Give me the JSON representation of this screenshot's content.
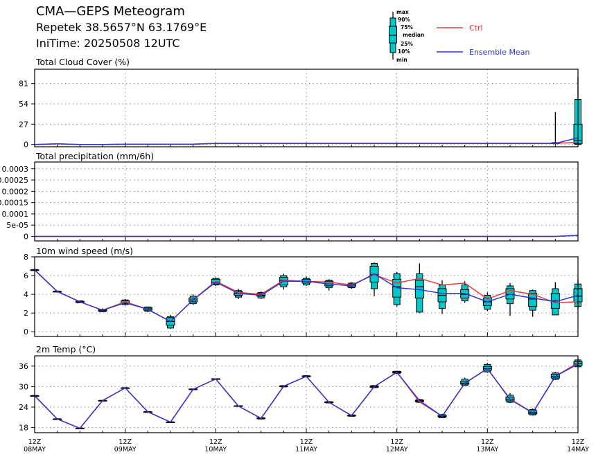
{
  "header": {
    "title": "CMA—GEPS Meteogram",
    "location": "Repetek 38.5657°N 63.1769°E",
    "init_time": "IniTime: 20250508 12UTC"
  },
  "legend": {
    "box_labels": [
      "max",
      "90%",
      "75%",
      "median",
      "25%",
      "10%",
      "min"
    ],
    "ctrl_label": "Ctrl",
    "mean_label": "Ensemble Mean",
    "ctrl_color": "#e8383d",
    "mean_color": "#2b35d8",
    "box_color": "#00c8c8"
  },
  "x_axis": {
    "ticks": [
      {
        "hour": "12Z",
        "date": "08MAY"
      },
      {
        "hour": "12Z",
        "date": "09MAY"
      },
      {
        "hour": "12Z",
        "date": "10MAY"
      },
      {
        "hour": "12Z",
        "date": "11MAY"
      },
      {
        "hour": "12Z",
        "date": "12MAY"
      },
      {
        "hour": "12Z",
        "date": "13MAY"
      },
      {
        "hour": "12Z",
        "date": "14MAY"
      }
    ],
    "step_hours": 6
  },
  "chart_data": [
    {
      "type": "line",
      "title": "Total Cloud Cover (%)",
      "ylim": [
        -3,
        100
      ],
      "yticks": [
        0,
        27,
        54,
        81
      ],
      "ytick_labels": [
        "0",
        "27",
        "54",
        "81"
      ],
      "x_hours": [
        0,
        6,
        12,
        18,
        24,
        30,
        36,
        42,
        48,
        54,
        60,
        66,
        72,
        78,
        84,
        90,
        96,
        102,
        108,
        114,
        120,
        126,
        132,
        138,
        144
      ],
      "ctrl": [
        0,
        1,
        0,
        0,
        0.5,
        0.5,
        0.5,
        0.5,
        1.5,
        1.5,
        1.5,
        1.5,
        1.5,
        1.5,
        1.5,
        1.5,
        1.5,
        1.5,
        1.5,
        1.5,
        1.5,
        1.5,
        1.5,
        1.5,
        3
      ],
      "mean": [
        0,
        1,
        0,
        0,
        0.5,
        0.5,
        0.5,
        0.5,
        1.5,
        1.5,
        1.5,
        1.5,
        1.5,
        1.5,
        1.5,
        1.5,
        1.5,
        1.5,
        1.5,
        1.5,
        1.5,
        1.5,
        1.5,
        1.5,
        9
      ],
      "boxes": [
        {
          "x": 138,
          "min": 0,
          "p10": 1,
          "p25": 1.5,
          "median": 1.5,
          "p75": 2,
          "p90": 2.5,
          "max": 43
        },
        {
          "x": 144,
          "min": 0,
          "p10": 0,
          "p25": 1,
          "median": 5,
          "p75": 27,
          "p90": 60,
          "max": 90
        }
      ]
    },
    {
      "type": "line",
      "title": "Total precipitation (mm/6h)",
      "ylim": [
        -2e-05,
        0.00033
      ],
      "yticks": [
        0,
        5e-05,
        0.0001,
        0.00015,
        0.0002,
        0.00025,
        0.0003
      ],
      "ytick_labels": [
        "0",
        "5e-05",
        "0.0001",
        "0.00015",
        "0.0002",
        "0.00025",
        "0.0003"
      ],
      "x_hours": [
        0,
        6,
        12,
        18,
        24,
        30,
        36,
        42,
        48,
        54,
        60,
        66,
        72,
        78,
        84,
        90,
        96,
        102,
        108,
        114,
        120,
        126,
        132,
        138,
        144
      ],
      "ctrl": [
        0,
        0,
        0,
        0,
        0,
        0,
        0,
        0,
        0,
        0,
        0,
        0,
        0,
        0,
        0,
        0,
        0,
        0,
        0,
        0,
        0,
        0,
        0,
        0,
        5e-06
      ],
      "mean": [
        0,
        0,
        0,
        0,
        0,
        0,
        0,
        0,
        0,
        0,
        0,
        0,
        0,
        0,
        0,
        0,
        0,
        0,
        0,
        0,
        0,
        0,
        0,
        0,
        5e-06
      ],
      "boxes": []
    },
    {
      "type": "line",
      "title": "10m wind speed (m/s)",
      "ylim": [
        -0.5,
        8
      ],
      "yticks": [
        0,
        2,
        4,
        6,
        8
      ],
      "ytick_labels": [
        "0",
        "2",
        "4",
        "6",
        "8"
      ],
      "x_hours": [
        0,
        6,
        12,
        18,
        24,
        30,
        36,
        42,
        48,
        54,
        60,
        66,
        72,
        78,
        84,
        90,
        96,
        102,
        108,
        114,
        120,
        126,
        132,
        138,
        144
      ],
      "ctrl": [
        6.6,
        4.3,
        3.2,
        2.3,
        3.2,
        2.4,
        1.1,
        3.4,
        5.4,
        4.2,
        4.0,
        5.5,
        5.4,
        5.3,
        5.0,
        6.1,
        5.2,
        5.7,
        5.0,
        5.2,
        3.5,
        4.4,
        4.0,
        3.1,
        3.2
      ],
      "mean": [
        6.6,
        4.3,
        3.2,
        2.3,
        3.1,
        2.4,
        1.1,
        3.4,
        5.3,
        4.1,
        3.9,
        5.4,
        5.4,
        5.1,
        4.9,
        6.2,
        4.7,
        4.5,
        4.1,
        4.1,
        3.2,
        4.0,
        3.6,
        3.2,
        3.9
      ],
      "boxes": [
        {
          "x": 0,
          "min": 6.5,
          "p10": 6.55,
          "p25": 6.6,
          "median": 6.6,
          "p75": 6.6,
          "p90": 6.65,
          "max": 6.7
        },
        {
          "x": 6,
          "min": 4.2,
          "p10": 4.25,
          "p25": 4.3,
          "median": 4.3,
          "p75": 4.3,
          "p90": 4.35,
          "max": 4.4
        },
        {
          "x": 12,
          "min": 3.1,
          "p10": 3.1,
          "p25": 3.15,
          "median": 3.2,
          "p75": 3.25,
          "p90": 3.3,
          "max": 3.3
        },
        {
          "x": 18,
          "min": 2.1,
          "p10": 2.15,
          "p25": 2.2,
          "median": 2.25,
          "p75": 2.35,
          "p90": 2.4,
          "max": 2.5
        },
        {
          "x": 24,
          "min": 2.8,
          "p10": 2.9,
          "p25": 3.0,
          "median": 3.1,
          "p75": 3.3,
          "p90": 3.4,
          "max": 3.5
        },
        {
          "x": 30,
          "min": 2.1,
          "p10": 2.2,
          "p25": 2.3,
          "median": 2.45,
          "p75": 2.6,
          "p90": 2.65,
          "max": 2.7
        },
        {
          "x": 36,
          "min": 0.3,
          "p10": 0.4,
          "p25": 0.7,
          "median": 1.1,
          "p75": 1.5,
          "p90": 1.6,
          "max": 1.8
        },
        {
          "x": 42,
          "min": 2.9,
          "p10": 3.0,
          "p25": 3.2,
          "median": 3.4,
          "p75": 3.6,
          "p90": 3.8,
          "max": 4.0
        },
        {
          "x": 48,
          "min": 4.9,
          "p10": 5.0,
          "p25": 5.1,
          "median": 5.3,
          "p75": 5.6,
          "p90": 5.7,
          "max": 5.8
        },
        {
          "x": 54,
          "min": 3.5,
          "p10": 3.7,
          "p25": 3.9,
          "median": 4.1,
          "p75": 4.3,
          "p90": 4.4,
          "max": 4.6
        },
        {
          "x": 60,
          "min": 3.5,
          "p10": 3.6,
          "p25": 3.8,
          "median": 3.9,
          "p75": 4.1,
          "p90": 4.2,
          "max": 4.3
        },
        {
          "x": 66,
          "min": 4.5,
          "p10": 4.8,
          "p25": 5.0,
          "median": 5.5,
          "p75": 5.8,
          "p90": 6.0,
          "max": 6.2
        },
        {
          "x": 72,
          "min": 4.9,
          "p10": 5.0,
          "p25": 5.2,
          "median": 5.4,
          "p75": 5.6,
          "p90": 5.7,
          "max": 5.9
        },
        {
          "x": 78,
          "min": 4.4,
          "p10": 4.7,
          "p25": 4.9,
          "median": 5.1,
          "p75": 5.4,
          "p90": 5.5,
          "max": 5.6
        },
        {
          "x": 84,
          "min": 4.6,
          "p10": 4.7,
          "p25": 4.8,
          "median": 5.0,
          "p75": 5.1,
          "p90": 5.2,
          "max": 5.3
        },
        {
          "x": 90,
          "min": 3.8,
          "p10": 4.6,
          "p25": 5.3,
          "median": 6.1,
          "p75": 7.0,
          "p90": 7.3,
          "max": 7.4
        },
        {
          "x": 96,
          "min": 2.7,
          "p10": 2.9,
          "p25": 3.7,
          "median": 4.8,
          "p75": 5.6,
          "p90": 6.2,
          "max": 6.4
        },
        {
          "x": 102,
          "min": 2.0,
          "p10": 2.1,
          "p25": 3.6,
          "median": 4.8,
          "p75": 5.5,
          "p90": 6.2,
          "max": 7.3
        },
        {
          "x": 108,
          "min": 1.9,
          "p10": 2.5,
          "p25": 3.2,
          "median": 3.9,
          "p75": 4.6,
          "p90": 5.0,
          "max": 5.5
        },
        {
          "x": 114,
          "min": 3.1,
          "p10": 3.3,
          "p25": 3.6,
          "median": 4.0,
          "p75": 4.5,
          "p90": 5.0,
          "max": 5.4
        },
        {
          "x": 120,
          "min": 2.2,
          "p10": 2.4,
          "p25": 2.8,
          "median": 3.2,
          "p75": 3.6,
          "p90": 3.9,
          "max": 4.2
        },
        {
          "x": 126,
          "min": 1.7,
          "p10": 3.0,
          "p25": 3.5,
          "median": 4.0,
          "p75": 4.6,
          "p90": 4.9,
          "max": 5.2
        },
        {
          "x": 132,
          "min": 1.6,
          "p10": 2.3,
          "p25": 2.7,
          "median": 3.5,
          "p75": 4.1,
          "p90": 4.4,
          "max": 4.5
        },
        {
          "x": 138,
          "min": 1.8,
          "p10": 1.8,
          "p25": 2.5,
          "median": 3.3,
          "p75": 4.1,
          "p90": 4.6,
          "max": 5.3
        },
        {
          "x": 144,
          "min": 2.4,
          "p10": 2.7,
          "p25": 3.2,
          "median": 3.8,
          "p75": 4.6,
          "p90": 5.1,
          "max": 5.6
        }
      ]
    },
    {
      "type": "line",
      "title": "2m Temp (°C)",
      "ylim": [
        16.5,
        39
      ],
      "yticks": [
        18,
        24,
        30,
        36
      ],
      "ytick_labels": [
        "18",
        "24",
        "30",
        "36"
      ],
      "x_hours": [
        0,
        6,
        12,
        18,
        24,
        30,
        36,
        42,
        48,
        54,
        60,
        66,
        72,
        78,
        84,
        90,
        96,
        102,
        108,
        114,
        120,
        126,
        132,
        138,
        144
      ],
      "ctrl": [
        27.3,
        20.5,
        17.8,
        25.9,
        29.6,
        22.6,
        19.6,
        29.2,
        32.2,
        24.3,
        20.7,
        30.1,
        33.0,
        25.4,
        21.5,
        30.0,
        34.2,
        25.5,
        21.3,
        31.0,
        35.2,
        26.4,
        22.4,
        33.0,
        37.0
      ],
      "mean": [
        27.3,
        20.5,
        17.8,
        25.9,
        29.6,
        22.6,
        19.6,
        29.2,
        32.2,
        24.3,
        20.7,
        30.1,
        33.0,
        25.4,
        21.5,
        30.0,
        34.2,
        25.9,
        21.3,
        31.0,
        35.3,
        26.2,
        22.3,
        33.0,
        36.6
      ],
      "boxes": [
        {
          "x": 0,
          "min": 27.1,
          "p10": 27.2,
          "p25": 27.2,
          "median": 27.3,
          "p75": 27.3,
          "p90": 27.4,
          "max": 27.4
        },
        {
          "x": 6,
          "min": 20.3,
          "p10": 20.4,
          "p25": 20.4,
          "median": 20.5,
          "p75": 20.5,
          "p90": 20.6,
          "max": 20.6
        },
        {
          "x": 12,
          "min": 17.6,
          "p10": 17.7,
          "p25": 17.7,
          "median": 17.8,
          "p75": 17.8,
          "p90": 17.9,
          "max": 17.9
        },
        {
          "x": 18,
          "min": 25.7,
          "p10": 25.8,
          "p25": 25.8,
          "median": 25.9,
          "p75": 25.9,
          "p90": 26.0,
          "max": 26.0
        },
        {
          "x": 24,
          "min": 29.4,
          "p10": 29.5,
          "p25": 29.5,
          "median": 29.6,
          "p75": 29.6,
          "p90": 29.7,
          "max": 29.7
        },
        {
          "x": 30,
          "min": 22.4,
          "p10": 22.5,
          "p25": 22.5,
          "median": 22.6,
          "p75": 22.6,
          "p90": 22.7,
          "max": 22.7
        },
        {
          "x": 36,
          "min": 19.4,
          "p10": 19.5,
          "p25": 19.5,
          "median": 19.6,
          "p75": 19.6,
          "p90": 19.7,
          "max": 19.7
        },
        {
          "x": 42,
          "min": 29.0,
          "p10": 29.1,
          "p25": 29.1,
          "median": 29.2,
          "p75": 29.3,
          "p90": 29.3,
          "max": 29.4
        },
        {
          "x": 48,
          "min": 32.0,
          "p10": 32.1,
          "p25": 32.1,
          "median": 32.2,
          "p75": 32.3,
          "p90": 32.3,
          "max": 32.4
        },
        {
          "x": 54,
          "min": 24.1,
          "p10": 24.2,
          "p25": 24.2,
          "median": 24.3,
          "p75": 24.4,
          "p90": 24.4,
          "max": 24.5
        },
        {
          "x": 60,
          "min": 20.4,
          "p10": 20.5,
          "p25": 20.6,
          "median": 20.7,
          "p75": 20.8,
          "p90": 20.9,
          "max": 21.0
        },
        {
          "x": 66,
          "min": 29.8,
          "p10": 29.9,
          "p25": 30.0,
          "median": 30.1,
          "p75": 30.2,
          "p90": 30.3,
          "max": 30.4
        },
        {
          "x": 72,
          "min": 32.7,
          "p10": 32.8,
          "p25": 32.9,
          "median": 33.0,
          "p75": 33.1,
          "p90": 33.2,
          "max": 33.3
        },
        {
          "x": 78,
          "min": 25.1,
          "p10": 25.2,
          "p25": 25.3,
          "median": 25.4,
          "p75": 25.5,
          "p90": 25.6,
          "max": 25.7
        },
        {
          "x": 84,
          "min": 21.2,
          "p10": 21.3,
          "p25": 21.4,
          "median": 21.5,
          "p75": 21.6,
          "p90": 21.7,
          "max": 21.8
        },
        {
          "x": 90,
          "min": 29.6,
          "p10": 29.7,
          "p25": 29.8,
          "median": 30.0,
          "p75": 30.2,
          "p90": 30.3,
          "max": 30.4
        },
        {
          "x": 96,
          "min": 33.7,
          "p10": 33.8,
          "p25": 34.0,
          "median": 34.2,
          "p75": 34.4,
          "p90": 34.5,
          "max": 34.6
        },
        {
          "x": 102,
          "min": 25.2,
          "p10": 25.4,
          "p25": 25.6,
          "median": 25.8,
          "p75": 26.0,
          "p90": 26.2,
          "max": 26.4
        },
        {
          "x": 108,
          "min": 20.8,
          "p10": 20.9,
          "p25": 21.1,
          "median": 21.3,
          "p75": 21.6,
          "p90": 21.8,
          "max": 22.0
        },
        {
          "x": 114,
          "min": 30.2,
          "p10": 30.4,
          "p25": 30.7,
          "median": 31.0,
          "p75": 31.6,
          "p90": 32.2,
          "max": 32.6
        },
        {
          "x": 120,
          "min": 34.0,
          "p10": 34.3,
          "p25": 34.8,
          "median": 35.3,
          "p75": 35.9,
          "p90": 36.5,
          "max": 36.9
        },
        {
          "x": 126,
          "min": 25.2,
          "p10": 25.4,
          "p25": 25.8,
          "median": 26.3,
          "p75": 26.9,
          "p90": 27.5,
          "max": 28.1
        },
        {
          "x": 132,
          "min": 21.5,
          "p10": 21.7,
          "p25": 22.0,
          "median": 22.4,
          "p75": 22.9,
          "p90": 23.3,
          "max": 23.6
        },
        {
          "x": 138,
          "min": 31.9,
          "p10": 32.1,
          "p25": 32.5,
          "median": 33.0,
          "p75": 33.6,
          "p90": 34.0,
          "max": 34.3
        },
        {
          "x": 144,
          "min": 35.6,
          "p10": 35.8,
          "p25": 36.2,
          "median": 36.7,
          "p75": 37.3,
          "p90": 37.8,
          "max": 38.2
        }
      ]
    }
  ]
}
